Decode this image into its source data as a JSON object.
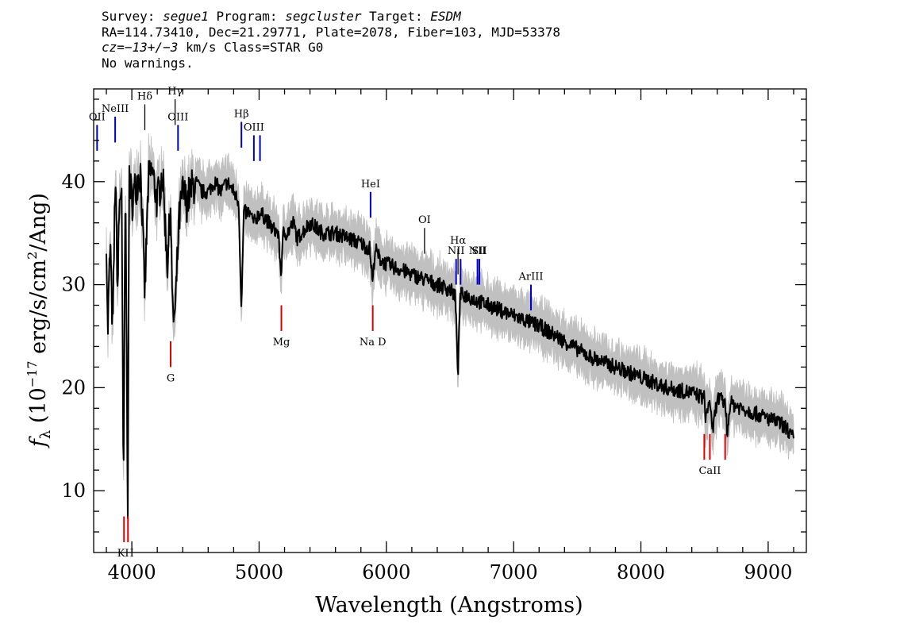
{
  "header": {
    "line1": [
      "Survey: ",
      "segue1",
      " Program: ",
      "segcluster",
      " Target: ",
      "ESDM"
    ],
    "line2": "RA=114.73410, Dec=21.29771, Plate=2078, Fiber=103, MJD=53378",
    "line3": [
      "cz=−13+/−3",
      " km/s Class=STAR G0"
    ],
    "line4": "No warnings."
  },
  "chart_data": {
    "type": "line",
    "xlabel": "Wavelength (Angstroms)",
    "ylabel": "fλ (10⁻¹⁷ erg/s/cm²/Ang)",
    "xlim": [
      3700,
      9300
    ],
    "ylim": [
      4,
      49
    ],
    "x_ticks": [
      4000,
      5000,
      6000,
      7000,
      8000,
      9000
    ],
    "y_ticks": [
      10,
      20,
      30,
      40
    ],
    "grid": false,
    "colors": {
      "flux": "#000000",
      "error": "#c0c0c0",
      "emission": "#0000cc",
      "absorption": "#dd0000",
      "neutral": "#000000"
    },
    "series": [
      {
        "name": "flux",
        "x": [
          3800,
          3810,
          3830,
          3850,
          3870,
          3889,
          3900,
          3920,
          3934,
          3950,
          3968,
          3980,
          4000,
          4040,
          4070,
          4102,
          4130,
          4160,
          4200,
          4240,
          4280,
          4305,
          4320,
          4340,
          4370,
          4400,
          4430,
          4460,
          4500,
          4550,
          4600,
          4650,
          4700,
          4750,
          4800,
          4840,
          4861,
          4880,
          4920,
          4960,
          5000,
          5050,
          5100,
          5150,
          5172,
          5190,
          5220,
          5270,
          5300,
          5400,
          5500,
          5600,
          5700,
          5800,
          5870,
          5893,
          5910,
          5950,
          6000,
          6100,
          6200,
          6300,
          6400,
          6500,
          6540,
          6563,
          6580,
          6620,
          6700,
          6800,
          7000,
          7200,
          7400,
          7600,
          7800,
          8000,
          8200,
          8400,
          8498,
          8510,
          8542,
          8560,
          8600,
          8662,
          8680,
          8700,
          8800,
          8900,
          9000,
          9100,
          9150,
          9200
        ],
        "y": [
          35,
          25,
          34,
          25,
          41,
          29,
          37,
          40,
          8.5,
          40,
          9,
          41,
          38,
          40,
          41,
          29,
          40,
          41,
          38,
          41,
          32,
          38,
          27,
          27,
          36,
          39,
          38,
          39,
          40,
          39,
          39,
          40,
          39,
          40,
          39,
          38,
          27.5,
          37,
          37,
          36,
          37,
          36.5,
          35.5,
          35,
          31,
          35,
          35,
          36,
          34.5,
          36,
          35,
          35,
          34.5,
          34,
          33.5,
          30,
          33.5,
          32.5,
          32,
          31.5,
          31,
          30.5,
          30,
          29.5,
          29,
          21.5,
          29,
          29,
          28.5,
          28,
          27,
          26,
          24.5,
          23,
          22,
          21,
          20,
          19.5,
          19,
          17,
          19,
          15.5,
          19,
          18.5,
          15.5,
          18.5,
          18,
          17.5,
          17,
          16.5,
          16,
          15
        ]
      }
    ],
    "line_labels": [
      {
        "label": "OII",
        "wavelength": 3727,
        "kind": "emission",
        "y_top": 45.5,
        "y_bot": 43
      },
      {
        "label": "NeIII",
        "wavelength": 3869,
        "kind": "emission",
        "y_top": 46.3,
        "y_bot": 43.8
      },
      {
        "label": "Hδ",
        "wavelength": 4102,
        "kind": "neutral",
        "y_top": 47.5,
        "y_bot": 45
      },
      {
        "label": "Hγ",
        "wavelength": 4340,
        "kind": "neutral",
        "y_top": 48,
        "y_bot": 45.5
      },
      {
        "label": "OIII",
        "wavelength": 4363,
        "kind": "emission",
        "y_top": 45.5,
        "y_bot": 43
      },
      {
        "label": "Hβ",
        "wavelength": 4861,
        "kind": "emission",
        "y_top": 45.8,
        "y_bot": 43.3
      },
      {
        "label": "OIII",
        "wavelength": 4959,
        "kind": "emission",
        "y_top": 44.5,
        "y_bot": 42
      },
      {
        "label": "",
        "wavelength": 5007,
        "kind": "emission",
        "y_top": 44.5,
        "y_bot": 42
      },
      {
        "label": "HeI",
        "wavelength": 5876,
        "kind": "emission",
        "y_top": 39,
        "y_bot": 36.5
      },
      {
        "label": "OI",
        "wavelength": 6300,
        "kind": "neutral",
        "y_top": 35.5,
        "y_bot": 33
      },
      {
        "label": "NII",
        "wavelength": 6548,
        "kind": "emission",
        "y_top": 32.5,
        "y_bot": 30
      },
      {
        "label": "Hα",
        "wavelength": 6563,
        "kind": "neutral",
        "y_top": 33.5,
        "y_bot": 31
      },
      {
        "label": "",
        "wavelength": 6583,
        "kind": "emission",
        "y_top": 32.5,
        "y_bot": 30
      },
      {
        "label": "NII",
        "wavelength": 6716,
        "kind": "emission",
        "y_top": 32.5,
        "y_bot": 30
      },
      {
        "label": "SII",
        "wavelength": 6731,
        "kind": "emission",
        "y_top": 32.5,
        "y_bot": 30
      },
      {
        "label": "ArIII",
        "wavelength": 7136,
        "kind": "emission",
        "y_top": 30,
        "y_bot": 27.5
      },
      {
        "label": "KH",
        "wavelength": 3951,
        "kind": "absorption",
        "y_top": 7.5,
        "y_bot": 5
      },
      {
        "label": "G",
        "wavelength": 4305,
        "kind": "absorption",
        "y_top": 24.5,
        "y_bot": 22
      },
      {
        "label": "Mg",
        "wavelength": 5175,
        "kind": "absorption",
        "y_top": 28,
        "y_bot": 25.5
      },
      {
        "label": "Na D",
        "wavelength": 5893,
        "kind": "absorption",
        "y_top": 28,
        "y_bot": 25.5
      },
      {
        "label": "CaII",
        "wavelength": 8542,
        "kind": "absorption",
        "y_top": 15.5,
        "y_bot": 13
      }
    ]
  }
}
